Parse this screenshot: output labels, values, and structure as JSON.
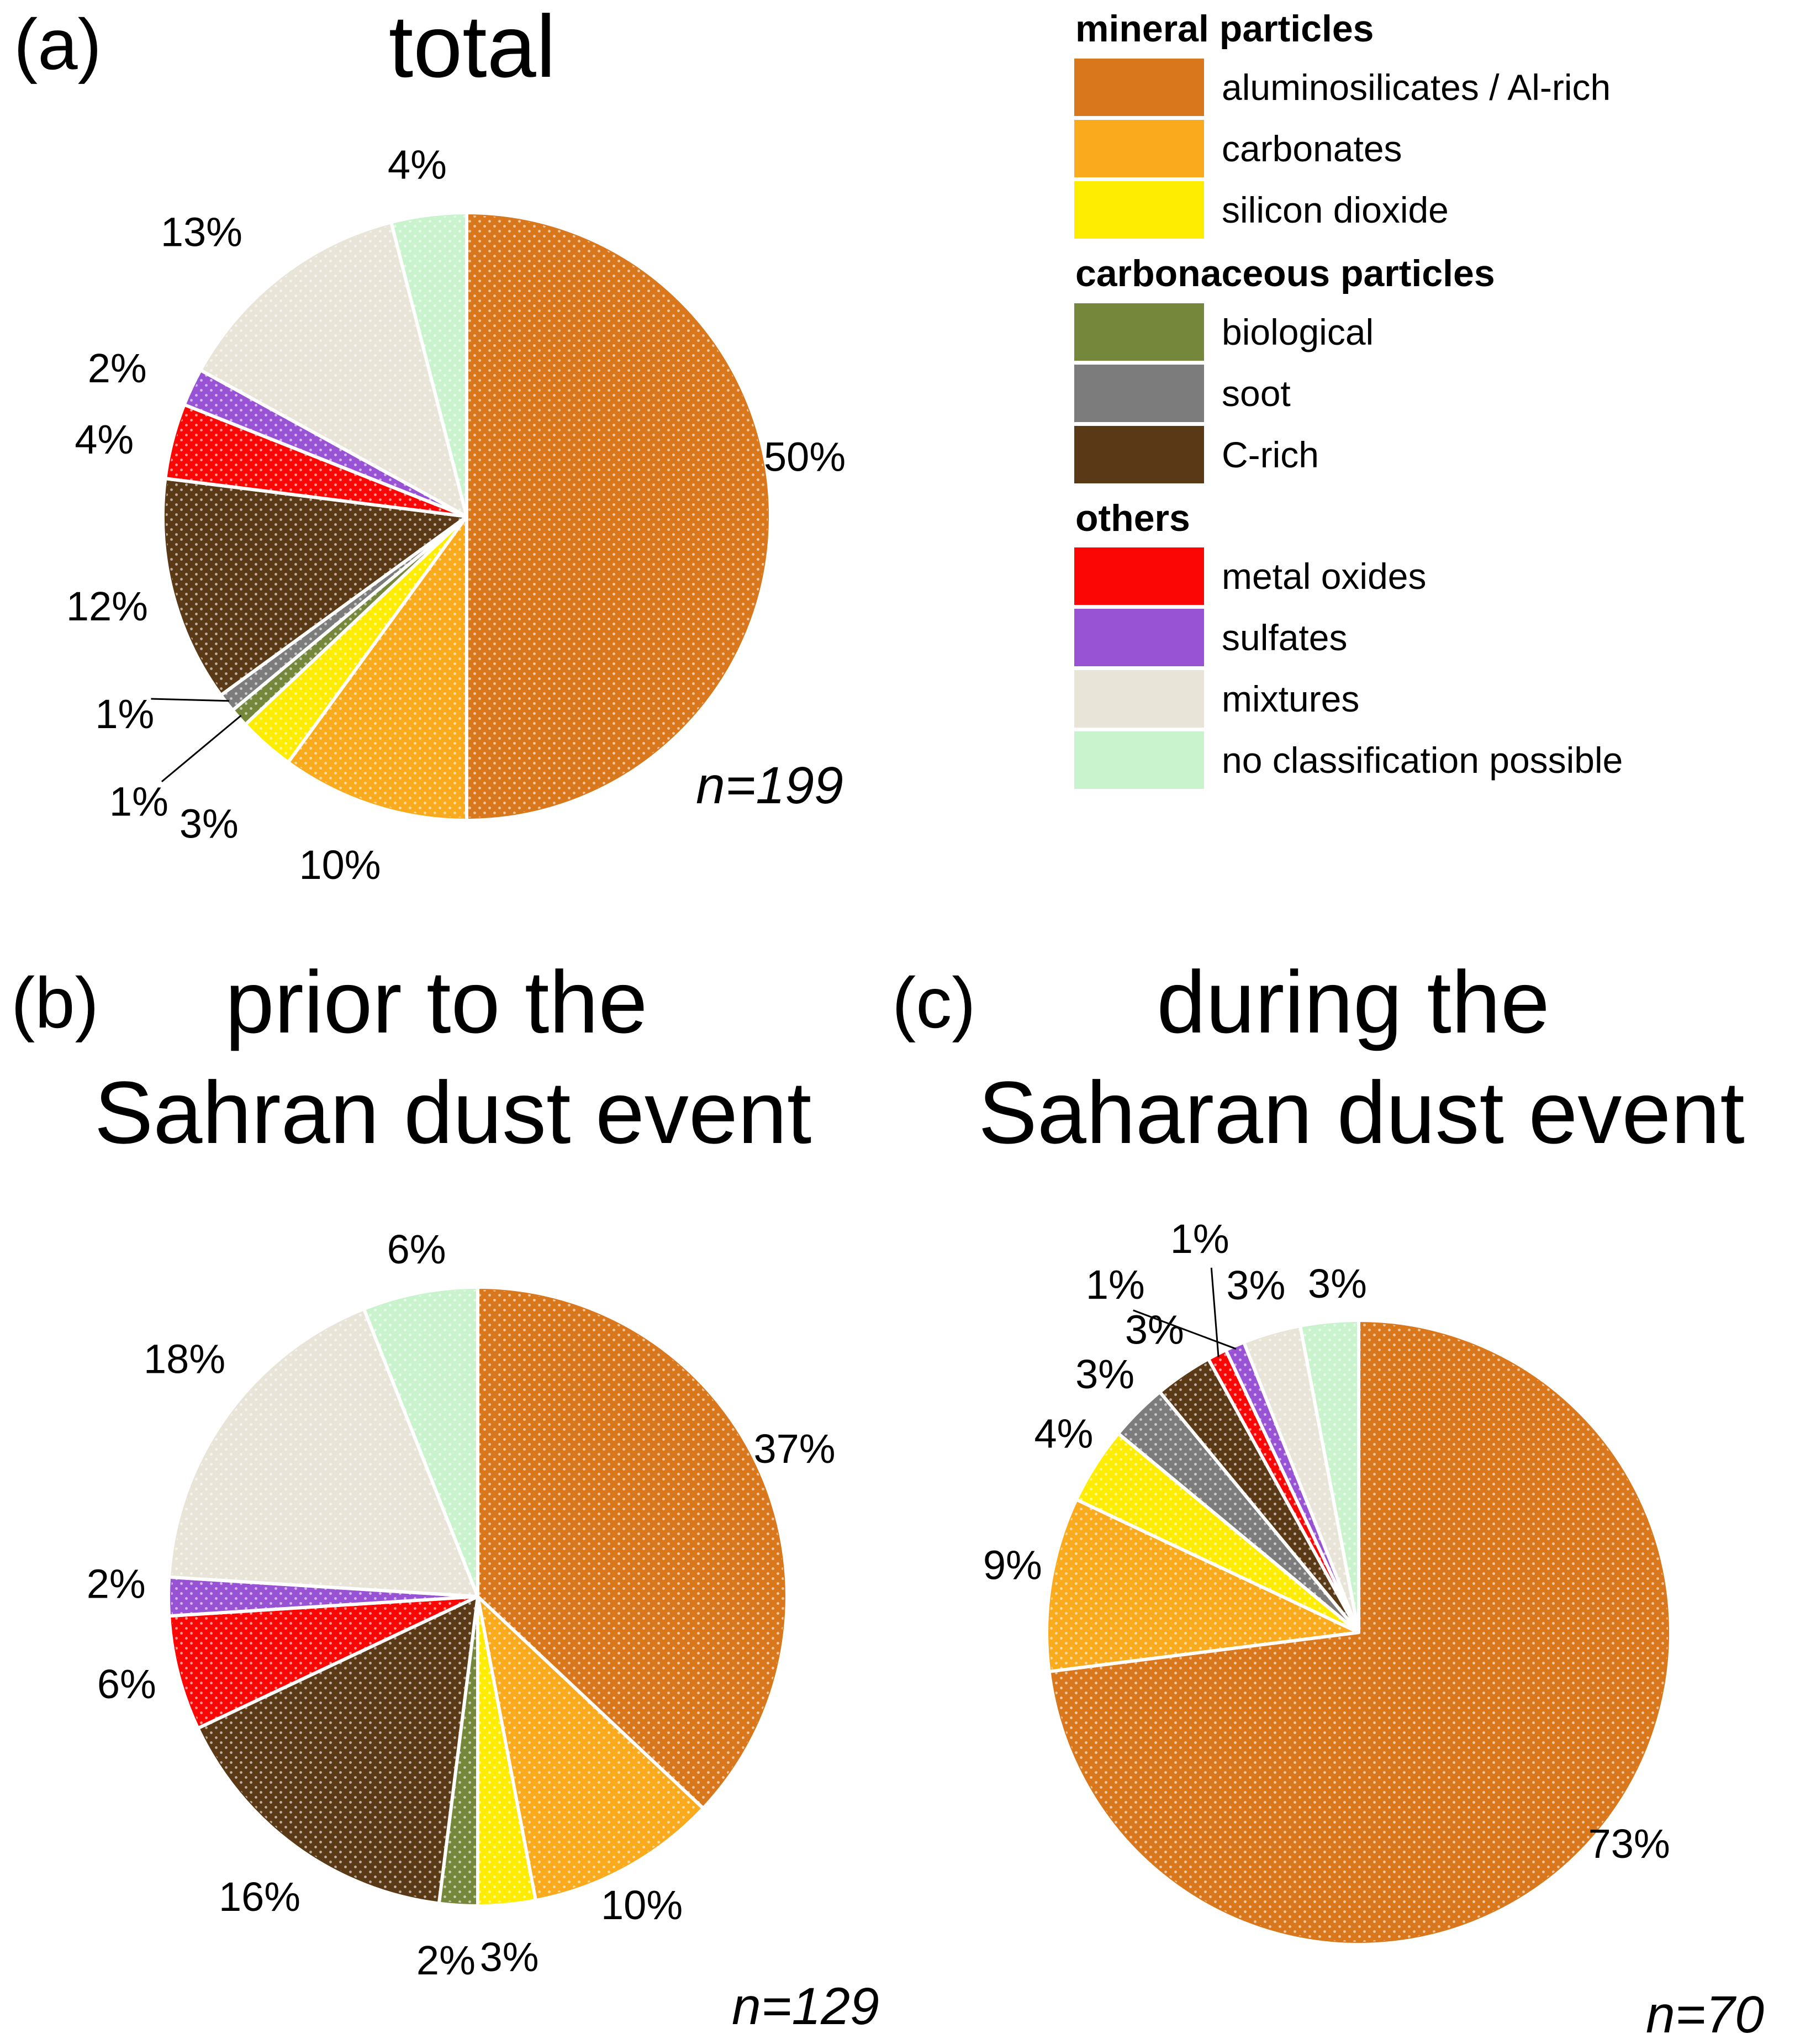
{
  "panels": {
    "a": {
      "tag": "(a)",
      "title": "total",
      "n_label": "n=199"
    },
    "b": {
      "tag": "(b)",
      "title_line1": "prior to the",
      "title_line2": "Sahran dust event",
      "n_label": "n=129"
    },
    "c": {
      "tag": "(c)",
      "title_line1": "during the",
      "title_line2": "Saharan dust event",
      "n_label": "n=70"
    }
  },
  "legend": {
    "groups": [
      {
        "header": "mineral particles",
        "items": [
          {
            "label": "aluminosilicates / Al-rich",
            "color": "#D9771C"
          },
          {
            "label": "carbonates",
            "color": "#FAAA1D"
          },
          {
            "label": "silicon dioxide",
            "color": "#FFED00"
          }
        ]
      },
      {
        "header": "carbonaceous particles",
        "items": [
          {
            "label": "biological",
            "color": "#75873B"
          },
          {
            "label": "soot",
            "color": "#7C7C7C"
          },
          {
            "label": "C-rich",
            "color": "#5A3A16"
          }
        ]
      },
      {
        "header": "others",
        "items": [
          {
            "label": "metal oxides",
            "color": "#FB0505"
          },
          {
            "label": "sulfates",
            "color": "#9853D5"
          },
          {
            "label": "mixtures",
            "color": "#E9E4D8"
          },
          {
            "label": "no classification possible",
            "color": "#C8F3CD"
          }
        ]
      }
    ]
  },
  "chart_data": [
    {
      "id": "pie-a",
      "type": "pie",
      "title": "total",
      "n": 199,
      "center": [
        845,
        935
      ],
      "radius": 550,
      "slices": [
        {
          "label": "aluminosilicates / Al-rich",
          "value": 50,
          "pct": "50%",
          "color": "#D9771C",
          "label_angle": 80,
          "label_radius": 1.13
        },
        {
          "label": "carbonates",
          "value": 10,
          "pct": "10%",
          "color": "#FAAA1D",
          "label_angle": 200,
          "label_radius": 1.22
        },
        {
          "label": "silicon dioxide",
          "value": 3,
          "pct": "3%",
          "color": "#FFED00",
          "label_angle": 220,
          "label_radius": 1.32
        },
        {
          "label": "biological",
          "value": 1,
          "pct": "1%",
          "color": "#75873B",
          "label_angle": 229,
          "label_radius": 1.43,
          "leader": true
        },
        {
          "label": "soot",
          "value": 1,
          "pct": "1%",
          "color": "#7C7C7C",
          "label_angle": 240,
          "label_radius": 1.3,
          "leader": true
        },
        {
          "label": "C-rich",
          "value": 12,
          "pct": "12%",
          "color": "#5A3A16",
          "label_angle": 256,
          "label_radius": 1.22
        },
        {
          "label": "metal oxides",
          "value": 4,
          "pct": "4%",
          "color": "#FB0505",
          "label_angle": 282,
          "label_radius": 1.22
        },
        {
          "label": "sulfates",
          "value": 2,
          "pct": "2%",
          "color": "#9853D5",
          "label_angle": 293,
          "label_radius": 1.25
        },
        {
          "label": "mixtures",
          "value": 13,
          "pct": "13%",
          "color": "#E9E4D8",
          "label_angle": 317,
          "label_radius": 1.28
        },
        {
          "label": "no classification possible",
          "value": 4,
          "pct": "4%",
          "color": "#C8F3CD",
          "label_angle": 352,
          "label_radius": 1.17
        }
      ]
    },
    {
      "id": "pie-b",
      "type": "pie",
      "title": "prior to the Sahran dust event",
      "n": 129,
      "center": [
        865,
        2890
      ],
      "radius": 560,
      "slices": [
        {
          "label": "aluminosilicates / Al-rich",
          "value": 37,
          "pct": "37%",
          "color": "#D9771C",
          "label_angle": 65,
          "label_radius": 1.13
        },
        {
          "label": "carbonates",
          "value": 10,
          "pct": "10%",
          "color": "#FAAA1D",
          "label_angle": 152,
          "label_radius": 1.13
        },
        {
          "label": "silicon dioxide",
          "value": 3,
          "pct": "3%",
          "color": "#FFED00",
          "label_angle": 175,
          "label_radius": 1.17
        },
        {
          "label": "biological",
          "value": 2,
          "pct": "2%",
          "color": "#75873B",
          "label_angle": 185,
          "label_radius": 1.18
        },
        {
          "label": "soot",
          "value": 0,
          "pct": "",
          "color": "#7C7C7C"
        },
        {
          "label": "C-rich",
          "value": 16,
          "pct": "16%",
          "color": "#5A3A16",
          "label_angle": 216,
          "label_radius": 1.2
        },
        {
          "label": "metal oxides",
          "value": 6,
          "pct": "6%",
          "color": "#FB0505",
          "label_angle": 256,
          "label_radius": 1.17
        },
        {
          "label": "sulfates",
          "value": 2,
          "pct": "2%",
          "color": "#9853D5",
          "label_angle": 272,
          "label_radius": 1.17
        },
        {
          "label": "mixtures",
          "value": 18,
          "pct": "18%",
          "color": "#E9E4D8",
          "label_angle": 309,
          "label_radius": 1.22
        },
        {
          "label": "no classification possible",
          "value": 6,
          "pct": "6%",
          "color": "#C8F3CD",
          "label_angle": 350,
          "label_radius": 1.14
        }
      ]
    },
    {
      "id": "pie-c",
      "type": "pie",
      "title": "during the Saharan dust event",
      "n": 70,
      "center": [
        2460,
        2955
      ],
      "radius": 565,
      "slices": [
        {
          "label": "aluminosilicates / Al-rich",
          "value": 73,
          "pct": "73%",
          "color": "#D9771C",
          "label_angle": 128,
          "label_radius": 1.1
        },
        {
          "label": "carbonates",
          "value": 9,
          "pct": "9%",
          "color": "#FAAA1D",
          "label_angle": 281,
          "label_radius": 1.13
        },
        {
          "label": "silicon dioxide",
          "value": 4,
          "pct": "4%",
          "color": "#FFED00",
          "label_angle": 304,
          "label_radius": 1.14
        },
        {
          "label": "biological",
          "value": 0,
          "pct": "",
          "color": "#75873B"
        },
        {
          "label": "soot",
          "value": 3,
          "pct": "3%",
          "color": "#7C7C7C",
          "label_angle": 315.5,
          "label_radius": 1.16
        },
        {
          "label": "C-rich",
          "value": 3,
          "pct": "3%",
          "color": "#5A3A16",
          "label_angle": 326,
          "label_radius": 1.17
        },
        {
          "label": "metal oxides",
          "value": 1,
          "pct": "1%",
          "color": "#FB0505",
          "label_angle": 338,
          "label_radius": 1.36,
          "leader": true
        },
        {
          "label": "sulfates",
          "value": 1,
          "pct": "1%",
          "color": "#9853D5",
          "label_angle": 325,
          "label_radius": 1.36,
          "leader": true
        },
        {
          "label": "mixtures",
          "value": 3,
          "pct": "3%",
          "color": "#E9E4D8",
          "label_angle": 343.5,
          "label_radius": 1.16
        },
        {
          "label": "no classification possible",
          "value": 3,
          "pct": "3%",
          "color": "#C8F3CD",
          "label_angle": 356.5,
          "label_radius": 1.12
        }
      ]
    }
  ]
}
